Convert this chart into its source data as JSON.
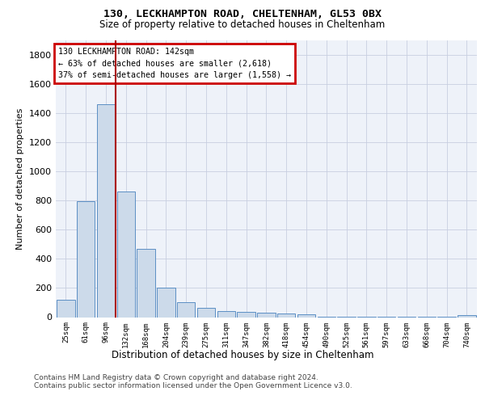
{
  "title1": "130, LECKHAMPTON ROAD, CHELTENHAM, GL53 0BX",
  "title2": "Size of property relative to detached houses in Cheltenham",
  "xlabel": "Distribution of detached houses by size in Cheltenham",
  "ylabel": "Number of detached properties",
  "categories": [
    "25sqm",
    "61sqm",
    "96sqm",
    "132sqm",
    "168sqm",
    "204sqm",
    "239sqm",
    "275sqm",
    "311sqm",
    "347sqm",
    "382sqm",
    "418sqm",
    "454sqm",
    "490sqm",
    "525sqm",
    "561sqm",
    "597sqm",
    "633sqm",
    "668sqm",
    "704sqm",
    "740sqm"
  ],
  "values": [
    120,
    795,
    1460,
    865,
    470,
    200,
    100,
    65,
    40,
    35,
    30,
    25,
    20,
    5,
    5,
    5,
    5,
    5,
    5,
    5,
    15
  ],
  "bar_color": "#ccdaea",
  "bar_edge_color": "#5b8fc4",
  "vline_color": "#aa0000",
  "vline_position": 2.5,
  "annotation_line1": "130 LECKHAMPTON ROAD: 142sqm",
  "annotation_line2": "← 63% of detached houses are smaller (2,618)",
  "annotation_line3": "37% of semi-detached houses are larger (1,558) →",
  "annotation_box_edgecolor": "#cc0000",
  "ylim": [
    0,
    1900
  ],
  "yticks": [
    0,
    200,
    400,
    600,
    800,
    1000,
    1200,
    1400,
    1600,
    1800
  ],
  "footer1": "Contains HM Land Registry data © Crown copyright and database right 2024.",
  "footer2": "Contains public sector information licensed under the Open Government Licence v3.0.",
  "bg_color": "#eef2f9",
  "grid_color": "#c8cfe0"
}
